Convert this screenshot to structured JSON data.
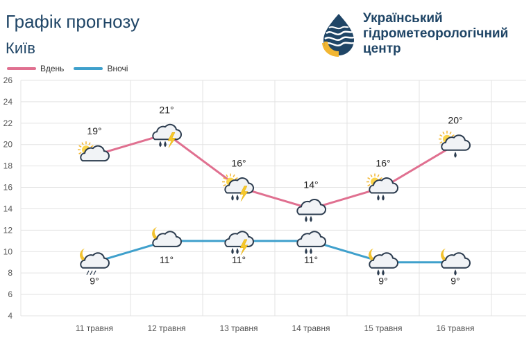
{
  "header": {
    "title": "Графік прогнозу",
    "city": "Київ",
    "org_lines": [
      "Український",
      "гідрометеорологічний",
      "центр"
    ]
  },
  "colors": {
    "day": "#e07090",
    "night": "#3fa0cc",
    "text_dark": "#1f4566",
    "logo_gold": "#f2b632"
  },
  "chart_data": {
    "type": "line",
    "categories": [
      "11 травня",
      "12 травня",
      "13 травня",
      "14 травня",
      "15 травня",
      "16 травня"
    ],
    "series": [
      {
        "name": "Вдень",
        "values": [
          19,
          21,
          16,
          14,
          16,
          20
        ],
        "labels": [
          "19°",
          "21°",
          "16°",
          "14°",
          "16°",
          "20°"
        ],
        "icons": [
          "sun-cloud",
          "thunderstorm-rain",
          "sun-cloud-thunder-rain",
          "cloud-rain",
          "sun-cloud-rain",
          "sun-cloud-light-rain"
        ]
      },
      {
        "name": "Вночі",
        "values": [
          9,
          11,
          11,
          11,
          9,
          9
        ],
        "labels": [
          "9°",
          "11°",
          "11°",
          "11°",
          "9°",
          "9°"
        ],
        "icons": [
          "moon-cloud-drizzle",
          "moon-cloud",
          "thunderstorm-rain",
          "cloud-rain",
          "moon-cloud-rain",
          "moon-cloud-light-rain"
        ]
      }
    ],
    "yticks": [
      4,
      6,
      8,
      10,
      12,
      14,
      16,
      18,
      20,
      22,
      24,
      26
    ],
    "ylim": [
      4,
      26
    ],
    "legend_position": "top-left",
    "grid": true
  }
}
